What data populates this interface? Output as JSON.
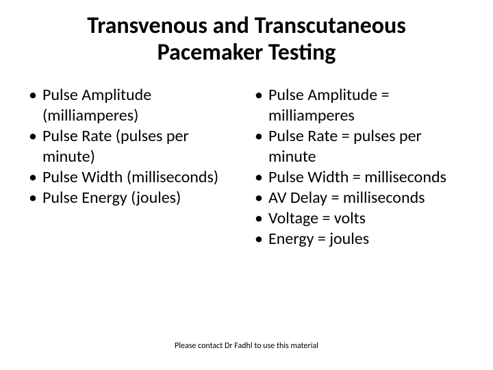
{
  "title": "Transvenous and Transcutaneous Pacemaker Testing",
  "left": {
    "items": [
      "Pulse Amplitude (milliamperes)",
      "Pulse Rate (pulses per minute)",
      "Pulse Width (milliseconds)",
      "Pulse Energy (joules)"
    ]
  },
  "right": {
    "items": [
      "Pulse Amplitude = milliamperes",
      "Pulse Rate = pulses per minute",
      "Pulse Width = milliseconds",
      "AV Delay = milliseconds",
      "Voltage = volts",
      "Energy = joules"
    ]
  },
  "footer": "Please contact Dr Fadhl to use this material",
  "colors": {
    "background": "#ffffff",
    "text": "#000000"
  },
  "fonts": {
    "title_size": 34,
    "body_size": 24,
    "footer_size": 12,
    "title_weight": 700
  }
}
